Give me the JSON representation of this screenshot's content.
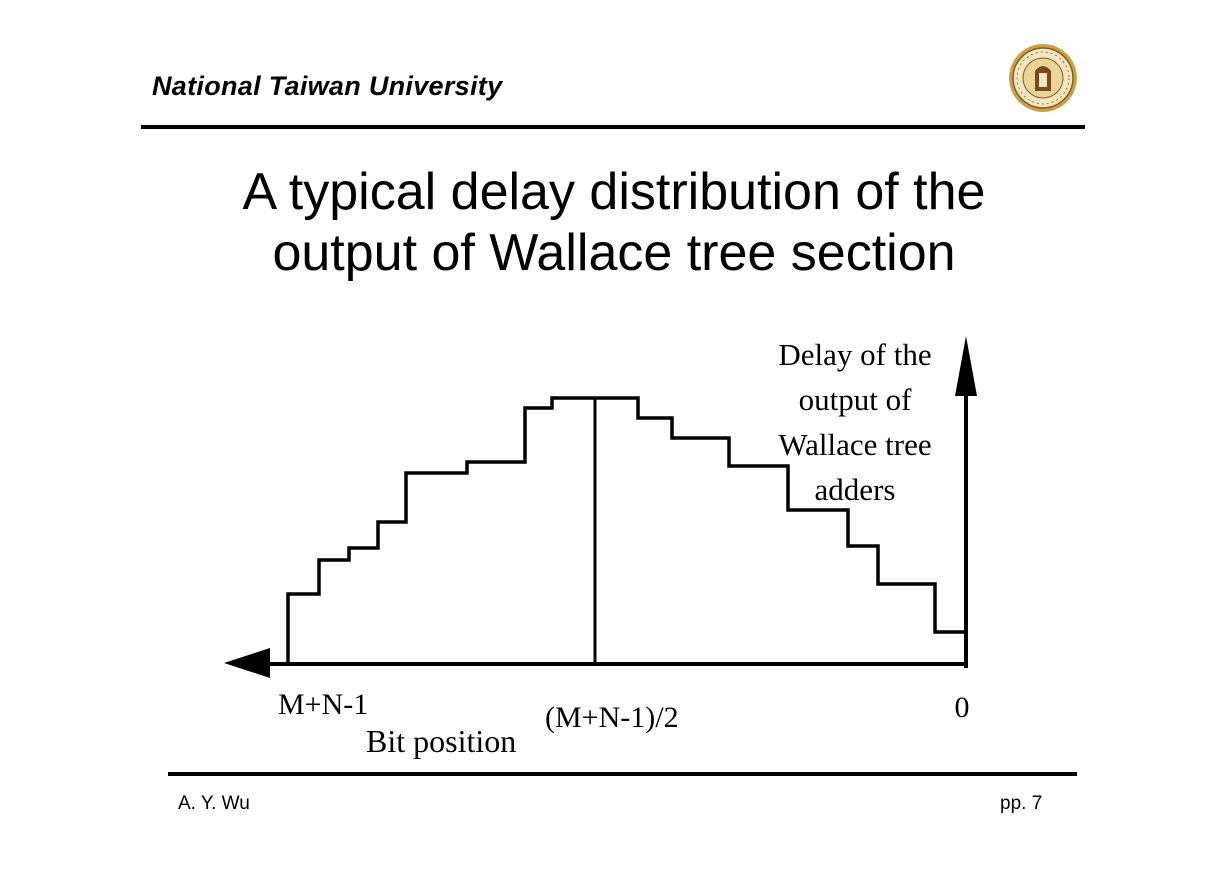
{
  "header": {
    "institution": "National Taiwan University"
  },
  "slide": {
    "title_line1": "A typical delay distribution of the",
    "title_line2": "output of Wallace tree section"
  },
  "diagram": {
    "y_axis_label": [
      "Delay of the",
      "output of",
      "Wallace tree",
      "adders"
    ],
    "x_axis_label": "Bit position",
    "tick_labels": {
      "left": "M+N-1",
      "middle": "(M+N-1)/2",
      "right": "0"
    },
    "stroke_color": "#000000"
  },
  "footer": {
    "author": "A. Y. Wu",
    "page": "pp. 7"
  }
}
